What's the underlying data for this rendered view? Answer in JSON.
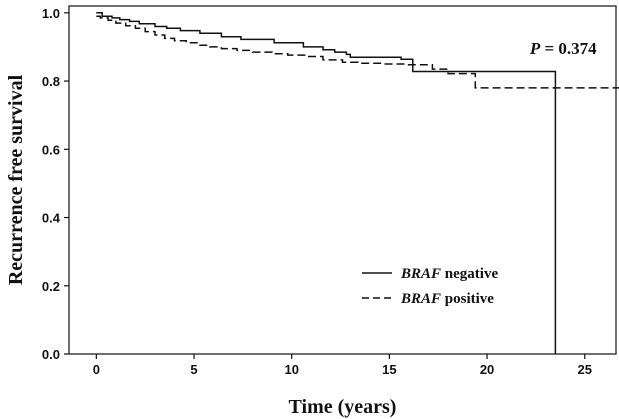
{
  "chart_data": {
    "type": "line",
    "xlabel": "Time (years)",
    "ylabel": "Recurrence free survival",
    "xlim": [
      -1.4,
      26.6
    ],
    "ylim": [
      0,
      1.02
    ],
    "x_ticks": [
      0,
      5,
      10,
      15,
      20,
      25
    ],
    "y_ticks": [
      0.0,
      0.2,
      0.4,
      0.6,
      0.8,
      1.0
    ],
    "y_tick_labels": [
      "0.0",
      "0.2",
      "0.4",
      "0.6",
      "0.8",
      "1.0"
    ],
    "grid": false,
    "legend_position": "bottom-center",
    "annotation": {
      "italic": "P",
      "rest": " = 0.374",
      "x": 23.9,
      "y": 0.88
    },
    "series": [
      {
        "name_italic": "BRAF",
        "name_rest": " negative",
        "style": "solid",
        "color": "#111111",
        "x": [
          0,
          0.3,
          0.8,
          1.2,
          1.7,
          2.2,
          3.0,
          3.6,
          4.3,
          5.3,
          6.4,
          7.4,
          9.1,
          10.6,
          11.6,
          12.2,
          12.8,
          13.0,
          15.6,
          16.2,
          18.5,
          19.2,
          23.5,
          23.5
        ],
        "y": [
          1.0,
          0.99,
          0.985,
          0.98,
          0.975,
          0.968,
          0.96,
          0.955,
          0.948,
          0.94,
          0.93,
          0.922,
          0.912,
          0.9,
          0.892,
          0.885,
          0.878,
          0.87,
          0.864,
          0.828,
          0.828,
          0.828,
          0.828,
          0.0
        ]
      },
      {
        "name_italic": "BRAF",
        "name_rest": " positive",
        "style": "dashed",
        "color": "#111111",
        "x": [
          0,
          0.2,
          0.6,
          1.0,
          1.5,
          2.0,
          2.5,
          3.0,
          3.5,
          4.0,
          4.6,
          5.2,
          5.8,
          6.4,
          7.2,
          8.0,
          9.0,
          9.8,
          10.8,
          11.6,
          12.6,
          13.4,
          14.6,
          15.8,
          17.2,
          18.0,
          19.2,
          19.4,
          27.0
        ],
        "y": [
          0.99,
          0.985,
          0.978,
          0.97,
          0.962,
          0.955,
          0.945,
          0.935,
          0.925,
          0.918,
          0.912,
          0.905,
          0.9,
          0.895,
          0.89,
          0.885,
          0.88,
          0.876,
          0.872,
          0.862,
          0.855,
          0.852,
          0.85,
          0.848,
          0.835,
          0.822,
          0.822,
          0.78,
          0.78
        ]
      }
    ]
  }
}
